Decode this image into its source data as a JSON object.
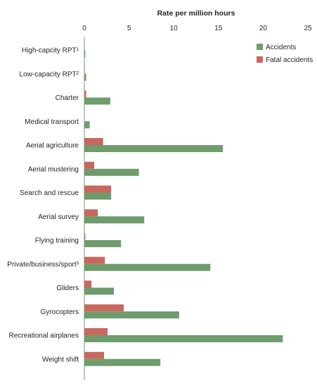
{
  "chart_data": {
    "type": "bar",
    "orientation": "horizontal",
    "title": "Rate per million hours",
    "xlim": [
      0,
      25
    ],
    "xticks": [
      "0",
      "5",
      "10",
      "15",
      "20",
      "25"
    ],
    "grid": false,
    "legend_position": "top-right",
    "categories": [
      "High-capcity RPT¹",
      "Low-capacity RPT²",
      "Charter",
      "Medical transport",
      "Aerial agriculture",
      "Aerial mustering",
      "Search and rescue",
      "Aerial survey",
      "Flying training",
      "Private/business/sport³",
      "Gliders",
      "Gyrocopters",
      "Recreational airplanes",
      "Weight shift"
    ],
    "series": [
      {
        "name": "Fatal accidents",
        "color": "#c8675d",
        "values": [
          0,
          0.05,
          0.2,
          0,
          2.1,
          1.1,
          3.0,
          1.5,
          0.1,
          2.3,
          0.8,
          4.4,
          2.6,
          2.2
        ]
      },
      {
        "name": "Accidents",
        "color": "#6e9c6d",
        "values": [
          0.1,
          0.2,
          2.9,
          0.6,
          15.5,
          6.1,
          3.0,
          6.7,
          4.1,
          14.1,
          3.3,
          10.6,
          22.2,
          8.5
        ]
      }
    ]
  }
}
